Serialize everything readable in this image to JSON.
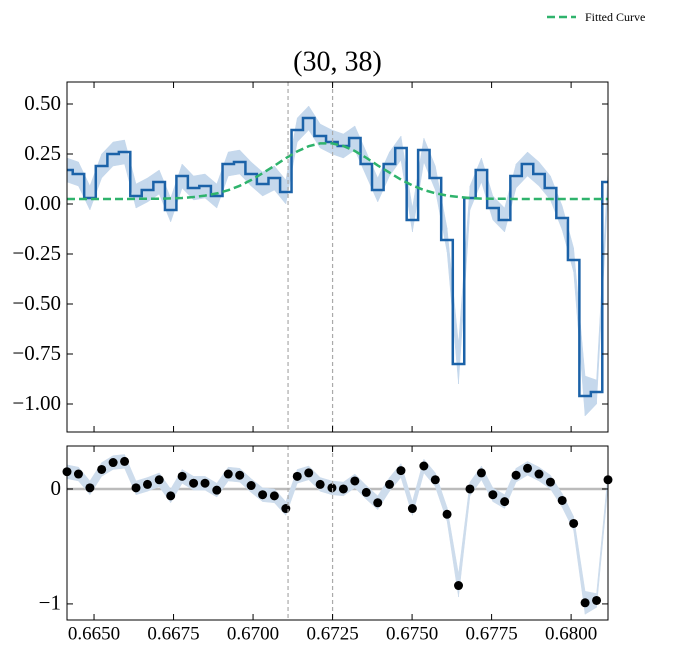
{
  "chart_data": [
    {
      "type": "step",
      "title": "(30, 38)",
      "x": [
        0.66415,
        0.66451,
        0.66487,
        0.66524,
        0.6656,
        0.66596,
        0.66632,
        0.66668,
        0.66705,
        0.66741,
        0.66777,
        0.66813,
        0.66849,
        0.66886,
        0.66922,
        0.66958,
        0.66994,
        0.6703,
        0.67067,
        0.67103,
        0.67139,
        0.67175,
        0.67211,
        0.67248,
        0.67284,
        0.6732,
        0.67356,
        0.67392,
        0.67429,
        0.67465,
        0.67501,
        0.67537,
        0.67573,
        0.6761,
        0.67646,
        0.67682,
        0.67718,
        0.67754,
        0.67791,
        0.67827,
        0.67863,
        0.67899,
        0.67935,
        0.67972,
        0.68008,
        0.68044,
        0.6808,
        0.68116
      ],
      "series": [
        {
          "color": "#1b62a8",
          "band_color": "#c5d8ec",
          "values": [
            0.17,
            0.15,
            0.03,
            0.19,
            0.25,
            0.26,
            0.04,
            0.07,
            0.11,
            -0.03,
            0.14,
            0.08,
            0.09,
            0.04,
            0.2,
            0.21,
            0.15,
            0.1,
            0.13,
            0.06,
            0.37,
            0.43,
            0.34,
            0.31,
            0.29,
            0.33,
            0.2,
            0.07,
            0.2,
            0.28,
            -0.08,
            0.27,
            0.13,
            -0.18,
            -0.8,
            0.03,
            0.17,
            -0.02,
            -0.08,
            0.14,
            0.2,
            0.15,
            0.08,
            -0.07,
            -0.28,
            -0.96,
            -0.94,
            0.11
          ],
          "errors": [
            0.06,
            0.06,
            0.06,
            0.06,
            0.06,
            0.06,
            0.06,
            0.06,
            0.06,
            0.06,
            0.06,
            0.06,
            0.06,
            0.06,
            0.06,
            0.06,
            0.06,
            0.06,
            0.06,
            0.06,
            0.06,
            0.06,
            0.06,
            0.06,
            0.06,
            0.06,
            0.06,
            0.06,
            0.06,
            0.06,
            0.06,
            0.06,
            0.06,
            0.06,
            0.1,
            0.06,
            0.06,
            0.06,
            0.06,
            0.06,
            0.06,
            0.06,
            0.06,
            0.06,
            0.06,
            0.1,
            0.06,
            0.06
          ]
        },
        {
          "name": "Fitted Curve",
          "color": "#2fb36c",
          "style": "dashed",
          "values": [
            0.025,
            0.025,
            0.025,
            0.025,
            0.025,
            0.025,
            0.026,
            0.026,
            0.026,
            0.028,
            0.03,
            0.035,
            0.042,
            0.053,
            0.069,
            0.091,
            0.12,
            0.154,
            0.191,
            0.229,
            0.263,
            0.289,
            0.303,
            0.303,
            0.29,
            0.265,
            0.231,
            0.193,
            0.157,
            0.122,
            0.093,
            0.07,
            0.054,
            0.042,
            0.035,
            0.03,
            0.027,
            0.026,
            0.026,
            0.025,
            0.025,
            0.025,
            0.025,
            0.025,
            0.025,
            0.025,
            0.025,
            0.025
          ]
        }
      ],
      "xlim": [
        0.66415,
        0.68116
      ],
      "ylim": [
        -1.14,
        0.61
      ],
      "xticks": [
        0.665,
        0.6675,
        0.67,
        0.6725,
        0.675,
        0.6775,
        0.68
      ],
      "yticks": [
        {
          "value": 0.5,
          "label": "0.50"
        },
        {
          "value": 0.25,
          "label": "0.25"
        },
        {
          "value": 0,
          "label": "0.00"
        },
        {
          "value": -0.25,
          "label": "−0.25"
        },
        {
          "value": -0.5,
          "label": "−0.50"
        },
        {
          "value": -0.75,
          "label": "−0.75"
        },
        {
          "value": -1,
          "label": "−1.00"
        }
      ],
      "vlines": [
        0.6711,
        0.6725
      ],
      "legend": "upper right"
    },
    {
      "type": "scatter",
      "x": [
        0.66415,
        0.66451,
        0.66487,
        0.66524,
        0.6656,
        0.66596,
        0.66632,
        0.66668,
        0.66705,
        0.66741,
        0.66777,
        0.66813,
        0.66849,
        0.66886,
        0.66922,
        0.66958,
        0.66994,
        0.6703,
        0.67067,
        0.67103,
        0.67139,
        0.67175,
        0.67211,
        0.67248,
        0.67284,
        0.6732,
        0.67356,
        0.67392,
        0.67429,
        0.67465,
        0.67501,
        0.67537,
        0.67573,
        0.6761,
        0.67646,
        0.67682,
        0.67718,
        0.67754,
        0.67791,
        0.67827,
        0.67863,
        0.67899,
        0.67935,
        0.67972,
        0.68008,
        0.68044,
        0.6808,
        0.68116
      ],
      "values": [
        0.15,
        0.13,
        0.01,
        0.17,
        0.23,
        0.24,
        0.01,
        0.04,
        0.08,
        -0.06,
        0.11,
        0.05,
        0.05,
        -0.01,
        0.13,
        0.12,
        0.03,
        -0.05,
        -0.06,
        -0.17,
        0.11,
        0.14,
        0.04,
        0.01,
        0.0,
        0.07,
        -0.03,
        -0.12,
        0.04,
        0.16,
        -0.17,
        0.2,
        0.08,
        -0.22,
        -0.84,
        0.0,
        0.14,
        -0.05,
        -0.11,
        0.12,
        0.18,
        0.13,
        0.06,
        -0.1,
        -0.3,
        -0.99,
        -0.97,
        0.08
      ],
      "errors": [
        0.06,
        0.06,
        0.06,
        0.06,
        0.06,
        0.06,
        0.06,
        0.06,
        0.06,
        0.06,
        0.06,
        0.06,
        0.06,
        0.06,
        0.06,
        0.06,
        0.06,
        0.06,
        0.06,
        0.06,
        0.06,
        0.06,
        0.06,
        0.06,
        0.06,
        0.06,
        0.06,
        0.06,
        0.06,
        0.06,
        0.06,
        0.06,
        0.06,
        0.06,
        0.1,
        0.06,
        0.06,
        0.06,
        0.06,
        0.06,
        0.06,
        0.06,
        0.06,
        0.06,
        0.06,
        0.1,
        0.06,
        0.06
      ],
      "color": "#000000",
      "band_color": "#cddcec",
      "xlim": [
        0.66415,
        0.68116
      ],
      "ylim": [
        -1.14,
        0.374
      ],
      "xticks": [
        {
          "value": 0.665,
          "label": "0.6650"
        },
        {
          "value": 0.6675,
          "label": "0.6675"
        },
        {
          "value": 0.67,
          "label": "0.6700"
        },
        {
          "value": 0.6725,
          "label": "0.6725"
        },
        {
          "value": 0.675,
          "label": "0.6750"
        },
        {
          "value": 0.6775,
          "label": "0.6775"
        },
        {
          "value": 0.68,
          "label": "0.6800"
        }
      ],
      "yticks": [
        0,
        {
          "value": -1,
          "label": "−1"
        }
      ],
      "vlines": [
        0.6711,
        0.6725
      ],
      "hline": 0
    }
  ]
}
